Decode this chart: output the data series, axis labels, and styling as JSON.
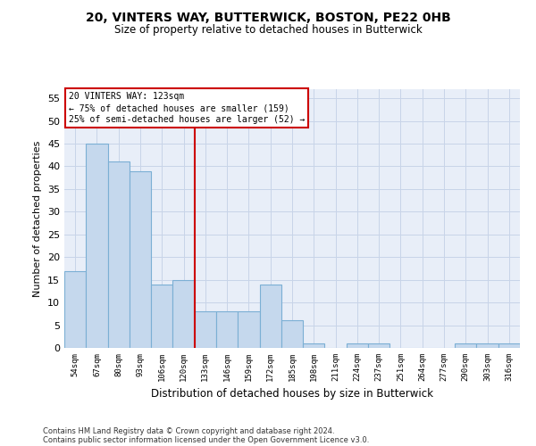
{
  "title1": "20, VINTERS WAY, BUTTERWICK, BOSTON, PE22 0HB",
  "title2": "Size of property relative to detached houses in Butterwick",
  "xlabel": "Distribution of detached houses by size in Butterwick",
  "ylabel": "Number of detached properties",
  "categories": [
    "54sqm",
    "67sqm",
    "80sqm",
    "93sqm",
    "106sqm",
    "120sqm",
    "133sqm",
    "146sqm",
    "159sqm",
    "172sqm",
    "185sqm",
    "198sqm",
    "211sqm",
    "224sqm",
    "237sqm",
    "251sqm",
    "264sqm",
    "277sqm",
    "290sqm",
    "303sqm",
    "316sqm"
  ],
  "values": [
    17,
    45,
    41,
    39,
    14,
    15,
    8,
    8,
    8,
    14,
    6,
    1,
    0,
    1,
    1,
    0,
    0,
    0,
    1,
    1,
    1
  ],
  "bar_color": "#c5d8ed",
  "bar_edge_color": "#7bafd4",
  "vline_x_index": 5,
  "vline_color": "#cc0000",
  "ylim": [
    0,
    57
  ],
  "yticks": [
    0,
    5,
    10,
    15,
    20,
    25,
    30,
    35,
    40,
    45,
    50,
    55
  ],
  "annotation_title": "20 VINTERS WAY: 123sqm",
  "annotation_line1": "← 75% of detached houses are smaller (159)",
  "annotation_line2": "25% of semi-detached houses are larger (52) →",
  "annotation_box_color": "#ffffff",
  "annotation_box_edge": "#cc0000",
  "footer1": "Contains HM Land Registry data © Crown copyright and database right 2024.",
  "footer2": "Contains public sector information licensed under the Open Government Licence v3.0.",
  "background_color": "#ffffff",
  "plot_bg_color": "#e8eef8",
  "grid_color": "#c8d4e8"
}
